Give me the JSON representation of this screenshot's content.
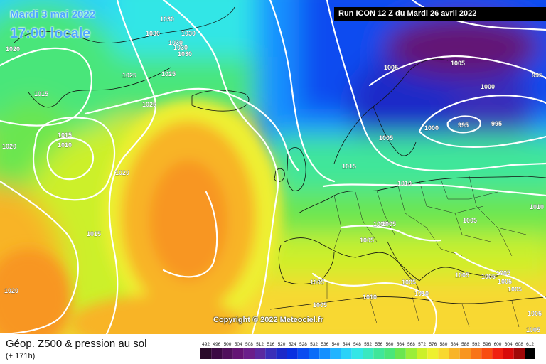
{
  "header": {
    "date_title": "Mardi 3 mai 2022",
    "date_time": "17:00 locale",
    "run_banner": "Run ICON 12 Z du Mardi 26 avril 2022",
    "copyright": "Copyright © 2022 Meteociel.fr"
  },
  "footer": {
    "title": "Géop. Z500 & pression au sol",
    "subtitle": "(+ 171h)"
  },
  "scale": {
    "values": [
      "492",
      "496",
      "500",
      "504",
      "508",
      "512",
      "516",
      "520",
      "524",
      "528",
      "532",
      "536",
      "540",
      "544",
      "548",
      "552",
      "556",
      "560",
      "564",
      "568",
      "572",
      "576",
      "580",
      "584",
      "588",
      "592",
      "596",
      "600",
      "604",
      "608",
      "612"
    ],
    "colors": [
      "#2a0a2a",
      "#3c0a44",
      "#50105c",
      "#641474",
      "#6a1f8a",
      "#5a2aa0",
      "#3a2fb8",
      "#1c2ac8",
      "#0a30e0",
      "#0a4cf0",
      "#0a6cf8",
      "#1590ff",
      "#22b4ff",
      "#2ad2f8",
      "#33e6e6",
      "#3ae8c0",
      "#40e69a",
      "#4ae67a",
      "#6ae650",
      "#9aee3a",
      "#ccf02a",
      "#eef030",
      "#f8d830",
      "#f8b428",
      "#f89620",
      "#f87418",
      "#f84c10",
      "#f02010",
      "#d80a0a",
      "#a00808",
      "#000000"
    ]
  },
  "pressure_labels": [
    "1030",
    "1030",
    "1030",
    "1030",
    "1030",
    "1030",
    "1020",
    "1025",
    "1025",
    "1015",
    "1025",
    "1015",
    "1010",
    "1020",
    "1020",
    "1015",
    "1020",
    "1005",
    "1005",
    "1000",
    "995",
    "995",
    "1000",
    "995",
    "1005",
    "1015",
    "1010",
    "1005",
    "1005",
    "1005",
    "1005",
    "1005",
    "1005",
    "1005",
    "1005",
    "1010",
    "1010",
    "1005",
    "1005",
    "1005",
    "1005",
    "1005",
    "1010",
    "1005"
  ],
  "colors": {
    "isobar": "#ffffff",
    "date_text": "#4fa8ff",
    "banner_bg": "#000000"
  }
}
